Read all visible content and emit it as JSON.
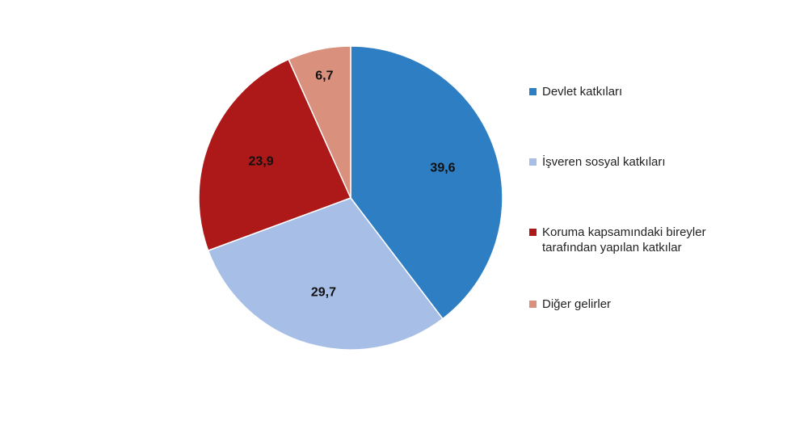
{
  "chart_data": {
    "type": "pie",
    "title": "",
    "legend_position": "right",
    "series": [
      {
        "name": "",
        "slices": [
          {
            "label": "Devlet katkıları",
            "label_lines": [
              "Devlet katkıları"
            ],
            "value": 39.6,
            "value_text": "39,6",
            "color": "#2e7ec4"
          },
          {
            "label": "İşveren sosyal katkıları",
            "label_lines": [
              "İşveren sosyal katkıları"
            ],
            "value": 29.7,
            "value_text": "29,7",
            "color": "#a7bfe6"
          },
          {
            "label": "Koruma kapsamındaki bireyler tarafından yapılan katkılar",
            "label_lines": [
              "Koruma kapsamındaki bireyler",
              "tarafından yapılan katkılar"
            ],
            "value": 23.9,
            "value_text": "23,9",
            "color": "#ad1818"
          },
          {
            "label": "Diğer gelirler",
            "label_lines": [
              "Diğer gelirler"
            ],
            "value": 6.7,
            "value_text": "6,7",
            "color": "#d9917d"
          }
        ]
      }
    ]
  }
}
